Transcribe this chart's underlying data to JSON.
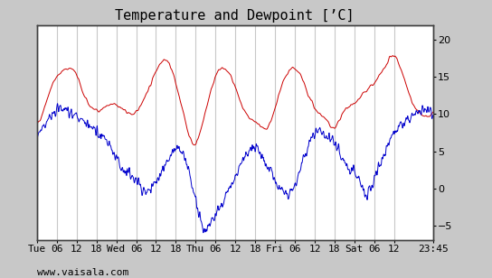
{
  "title": "Temperature and Dewpoint [’C]",
  "bg_color": "#c8c8c8",
  "plot_bg_color": "#ffffff",
  "grid_color": "#c8c8c8",
  "temp_color": "#cc0000",
  "dew_color": "#0000cc",
  "ylim": [
    -7,
    22
  ],
  "yticks": [
    -5,
    0,
    5,
    10,
    15,
    20
  ],
  "xtick_labels": [
    "Tue",
    "06",
    "12",
    "18",
    "Wed",
    "06",
    "12",
    "18",
    "Thu",
    "06",
    "12",
    "18",
    "Fri",
    "06",
    "12",
    "18",
    "Sat",
    "06",
    "12",
    "23:45"
  ],
  "watermark": "www.vaisala.com",
  "title_fontsize": 11,
  "tick_fontsize": 8,
  "watermark_fontsize": 8,
  "temp_data": [
    8.5,
    9.0,
    9.5,
    10.2,
    11.0,
    11.8,
    12.5,
    13.2,
    13.9,
    14.4,
    14.9,
    15.2,
    15.5,
    15.7,
    15.9,
    16.0,
    16.1,
    16.2,
    16.2,
    16.0,
    15.7,
    15.2,
    14.6,
    13.9,
    13.1,
    12.4,
    11.9,
    11.4,
    11.1,
    10.9,
    10.7,
    10.6,
    10.5,
    10.5,
    10.6,
    10.8,
    11.0,
    11.1,
    11.1,
    11.2,
    11.3,
    11.4,
    11.3,
    11.1,
    10.9,
    10.7,
    10.5,
    10.3,
    10.2,
    10.1,
    10.0,
    10.0,
    10.1,
    10.4,
    10.9,
    11.4,
    11.9,
    12.4,
    12.9,
    13.4,
    13.9,
    14.7,
    15.4,
    15.9,
    16.4,
    16.9,
    17.2,
    17.4,
    17.3,
    17.1,
    16.7,
    16.1,
    15.4,
    14.4,
    13.4,
    12.4,
    11.4,
    10.4,
    9.4,
    8.4,
    7.4,
    6.7,
    6.1,
    5.9,
    6.1,
    6.7,
    7.4,
    8.4,
    9.4,
    10.4,
    11.4,
    12.4,
    13.4,
    14.2,
    14.9,
    15.4,
    15.9,
    16.1,
    16.2,
    16.1,
    15.9,
    15.6,
    15.2,
    14.7,
    14.1,
    13.4,
    12.7,
    11.9,
    11.2,
    10.6,
    10.1,
    9.7,
    9.4,
    9.2,
    9.1,
    9.0,
    8.9,
    8.7,
    8.4,
    8.1,
    7.9,
    8.1,
    8.4,
    8.9,
    9.4,
    10.1,
    10.9,
    11.9,
    12.9,
    13.7,
    14.4,
    14.9,
    15.4,
    15.9,
    16.1,
    16.2,
    16.1,
    15.9,
    15.6,
    15.2,
    14.7,
    14.1,
    13.4,
    12.7,
    12.1,
    11.7,
    11.1,
    10.7,
    10.4,
    10.1,
    9.9,
    9.7,
    9.4,
    9.1,
    8.7,
    8.4,
    8.2,
    8.1,
    8.4,
    8.9,
    9.4,
    9.9,
    10.4,
    10.7,
    10.9,
    11.1,
    11.2,
    11.4,
    11.7,
    11.9,
    12.1,
    12.4,
    12.7,
    12.9,
    13.1,
    13.4,
    13.7,
    13.9,
    14.1,
    14.4,
    14.9,
    15.2,
    15.7,
    16.1,
    16.4,
    16.9,
    17.4,
    17.7,
    17.9,
    17.7,
    17.4,
    16.9,
    16.1,
    15.4,
    14.7,
    13.9,
    13.1,
    12.4,
    11.7,
    11.1,
    10.7,
    10.4,
    10.1,
    9.9,
    9.7,
    9.6,
    9.6,
    9.7,
    9.9,
    10.1
  ],
  "dew_data_base": [
    7.0,
    7.5,
    7.8,
    8.0,
    8.5,
    9.0,
    9.5,
    9.8,
    10.0,
    10.2,
    10.5,
    10.8,
    11.0,
    11.0,
    10.8,
    10.5,
    10.3,
    10.2,
    10.0,
    9.8,
    9.5,
    9.2,
    9.0,
    8.8,
    8.7,
    8.5,
    8.3,
    8.0,
    7.8,
    7.5,
    7.3,
    7.0,
    6.8,
    6.5,
    6.0,
    5.5,
    5.0,
    4.5,
    4.0,
    3.5,
    3.0,
    2.8,
    2.5,
    2.2,
    2.0,
    1.8,
    1.5,
    1.2,
    1.0,
    0.5,
    0.0,
    -0.2,
    -0.5,
    -0.2,
    0.0,
    0.2,
    0.5,
    1.0,
    1.5,
    2.0,
    2.5,
    3.0,
    3.5,
    4.0,
    4.5,
    5.0,
    5.2,
    5.5,
    5.3,
    5.0,
    4.5,
    3.8,
    3.0,
    2.0,
    0.5,
    -0.5,
    -2.0,
    -3.5,
    -4.5,
    -5.5,
    -6.0,
    -5.5,
    -5.0,
    -4.5,
    -4.0,
    -3.5,
    -3.0,
    -2.5,
    -2.0,
    -1.5,
    -1.0,
    -0.5,
    0.0,
    0.5,
    1.0,
    1.8,
    2.5,
    3.0,
    3.5,
    4.0,
    4.5,
    5.0,
    5.2,
    5.5,
    5.5,
    5.3,
    5.0,
    4.5,
    4.0,
    3.5,
    3.0,
    2.5,
    2.0,
    1.5,
    1.0,
    0.5,
    0.0,
    -0.5,
    -0.8,
    -1.0,
    -0.8,
    -0.5,
    0.0,
    0.5,
    1.2,
    2.0,
    2.8,
    3.5,
    4.2,
    5.0,
    5.8,
    6.5,
    7.0,
    7.5,
    7.8,
    8.0,
    7.8,
    7.5,
    7.2,
    7.0,
    6.8,
    6.5,
    6.0,
    5.5,
    5.0,
    4.5,
    4.0,
    3.5,
    3.2,
    3.0,
    2.8,
    2.5,
    2.0,
    1.5,
    0.8,
    0.0,
    -0.5,
    -1.0,
    -0.5,
    0.0,
    0.5,
    1.2,
    2.0,
    2.8,
    3.5,
    4.2,
    5.0,
    5.8,
    6.5,
    7.0,
    7.5,
    7.8,
    8.0,
    8.2,
    8.5,
    8.8,
    9.0,
    9.2,
    9.5,
    9.8,
    10.0,
    10.2,
    10.5,
    10.8,
    11.0,
    11.0,
    10.8,
    10.5,
    10.2,
    10.0
  ],
  "noise_seed": 42,
  "noise_scale_dew": 0.8,
  "noise_scale_temp": 0.3
}
